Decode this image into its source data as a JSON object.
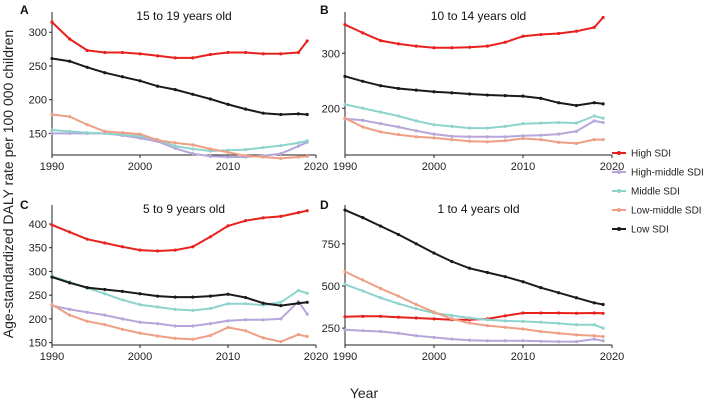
{
  "figure": {
    "xlabel": "Year",
    "ylabel": "Age-standardized DALY rate per 100 000 children"
  },
  "legend": {
    "items": [
      {
        "name": "High SDI",
        "color": "#e8211e"
      },
      {
        "name": "High-middle SDI",
        "color": "#b6a6d9"
      },
      {
        "name": "Middle SDI",
        "color": "#8fd3cd"
      },
      {
        "name": "Low-middle SDI",
        "color": "#ef9f85"
      },
      {
        "name": "Low SDI",
        "color": "#1a1a1a"
      }
    ]
  },
  "chart_data": [
    {
      "type": "line",
      "letter": "A",
      "title": "15 to 19 years old",
      "x": [
        1990,
        1992,
        1994,
        1996,
        1998,
        2000,
        2002,
        2004,
        2006,
        2008,
        2010,
        2012,
        2014,
        2016,
        2018,
        2019
      ],
      "xlim": [
        1990,
        2020
      ],
      "xticks": [
        1990,
        2000,
        2010,
        2020
      ],
      "ylim": [
        118,
        330
      ],
      "yticks": [
        150,
        200,
        250,
        300
      ],
      "series": [
        {
          "name": "High SDI",
          "values": [
            315,
            290,
            273,
            270,
            270,
            268,
            265,
            262,
            262,
            267,
            270,
            270,
            268,
            268,
            270,
            287
          ]
        },
        {
          "name": "High-middle SDI",
          "values": [
            150,
            150,
            150,
            150,
            147,
            143,
            138,
            128,
            120,
            116,
            115,
            115,
            117,
            120,
            131,
            137
          ]
        },
        {
          "name": "Middle SDI",
          "values": [
            155,
            153,
            151,
            150,
            148,
            146,
            141,
            131,
            127,
            124,
            125,
            126,
            129,
            132,
            136,
            139
          ]
        },
        {
          "name": "Low-middle SDI",
          "values": [
            178,
            175,
            163,
            153,
            151,
            149,
            140,
            136,
            133,
            127,
            122,
            117,
            115,
            113,
            115,
            116
          ]
        },
        {
          "name": "Low SDI",
          "values": [
            261,
            257,
            248,
            240,
            234,
            228,
            220,
            215,
            208,
            201,
            193,
            186,
            180,
            178,
            179,
            178
          ]
        }
      ]
    },
    {
      "type": "line",
      "letter": "B",
      "title": "10 to 14 years old",
      "x": [
        1990,
        1992,
        1994,
        1996,
        1998,
        2000,
        2002,
        2004,
        2006,
        2008,
        2010,
        2012,
        2014,
        2016,
        2018,
        2019
      ],
      "xlim": [
        1990,
        2020
      ],
      "xticks": [
        1990,
        2000,
        2010,
        2020
      ],
      "ylim": [
        115,
        375
      ],
      "yticks": [
        200,
        300
      ],
      "series": [
        {
          "name": "High SDI",
          "values": [
            352,
            337,
            323,
            317,
            313,
            310,
            310,
            311,
            313,
            320,
            331,
            334,
            336,
            340,
            347,
            365
          ]
        },
        {
          "name": "High-middle SDI",
          "values": [
            181,
            178,
            172,
            166,
            159,
            153,
            149,
            148,
            148,
            148,
            150,
            151,
            153,
            158,
            177,
            174
          ]
        },
        {
          "name": "Middle SDI",
          "values": [
            207,
            200,
            193,
            186,
            177,
            170,
            167,
            164,
            164,
            167,
            172,
            173,
            174,
            173,
            186,
            182
          ]
        },
        {
          "name": "Low-middle SDI",
          "values": [
            182,
            166,
            157,
            152,
            148,
            146,
            143,
            140,
            139,
            141,
            145,
            143,
            138,
            136,
            143,
            143
          ]
        },
        {
          "name": "Low SDI",
          "values": [
            258,
            249,
            241,
            236,
            233,
            230,
            228,
            226,
            224,
            223,
            222,
            218,
            210,
            205,
            210,
            208
          ]
        }
      ]
    },
    {
      "type": "line",
      "letter": "C",
      "title": "5 to 9 years old",
      "x": [
        1990,
        1992,
        1994,
        1996,
        1998,
        2000,
        2002,
        2004,
        2006,
        2008,
        2010,
        2012,
        2014,
        2016,
        2018,
        2019
      ],
      "xlim": [
        1990,
        2020
      ],
      "xticks": [
        1990,
        2000,
        2010,
        2020
      ],
      "ylim": [
        145,
        440
      ],
      "yticks": [
        150,
        200,
        250,
        300,
        350,
        400
      ],
      "series": [
        {
          "name": "High SDI",
          "values": [
            398,
            383,
            368,
            360,
            352,
            345,
            343,
            345,
            352,
            373,
            396,
            407,
            413,
            416,
            424,
            428
          ]
        },
        {
          "name": "High-middle SDI",
          "values": [
            228,
            220,
            214,
            208,
            200,
            193,
            190,
            185,
            185,
            190,
            196,
            198,
            198,
            200,
            237,
            210
          ]
        },
        {
          "name": "Middle SDI",
          "values": [
            290,
            278,
            265,
            253,
            240,
            230,
            225,
            220,
            218,
            222,
            232,
            232,
            229,
            235,
            260,
            254
          ]
        },
        {
          "name": "Low-middle SDI",
          "values": [
            230,
            208,
            195,
            188,
            178,
            170,
            164,
            159,
            157,
            165,
            182,
            175,
            160,
            152,
            167,
            163
          ]
        },
        {
          "name": "Low SDI",
          "values": [
            288,
            276,
            266,
            262,
            258,
            253,
            248,
            246,
            246,
            248,
            252,
            245,
            233,
            228,
            233,
            235
          ]
        }
      ]
    },
    {
      "type": "line",
      "letter": "D",
      "title": "1 to 4 years old",
      "x": [
        1990,
        1992,
        1994,
        1996,
        1998,
        2000,
        2002,
        2004,
        2006,
        2008,
        2010,
        2012,
        2014,
        2016,
        2018,
        2019
      ],
      "xlim": [
        1990,
        2020
      ],
      "xticks": [
        1990,
        2000,
        2010,
        2020
      ],
      "ylim": [
        150,
        980
      ],
      "yticks": [
        250,
        500,
        750
      ],
      "series": [
        {
          "name": "High SDI",
          "values": [
            318,
            320,
            320,
            315,
            310,
            305,
            300,
            300,
            305,
            323,
            340,
            340,
            340,
            338,
            340,
            338
          ]
        },
        {
          "name": "High-middle SDI",
          "values": [
            240,
            235,
            230,
            220,
            205,
            195,
            185,
            178,
            175,
            175,
            175,
            172,
            170,
            170,
            185,
            175
          ]
        },
        {
          "name": "Middle SDI",
          "values": [
            510,
            470,
            430,
            395,
            365,
            340,
            325,
            310,
            300,
            293,
            290,
            285,
            278,
            270,
            270,
            250
          ]
        },
        {
          "name": "Low-middle SDI",
          "values": [
            585,
            535,
            485,
            440,
            390,
            345,
            305,
            280,
            265,
            255,
            245,
            230,
            220,
            210,
            205,
            200
          ]
        },
        {
          "name": "Low SDI",
          "values": [
            950,
            905,
            855,
            805,
            750,
            695,
            645,
            605,
            580,
            555,
            525,
            490,
            460,
            430,
            400,
            390
          ]
        }
      ]
    }
  ]
}
